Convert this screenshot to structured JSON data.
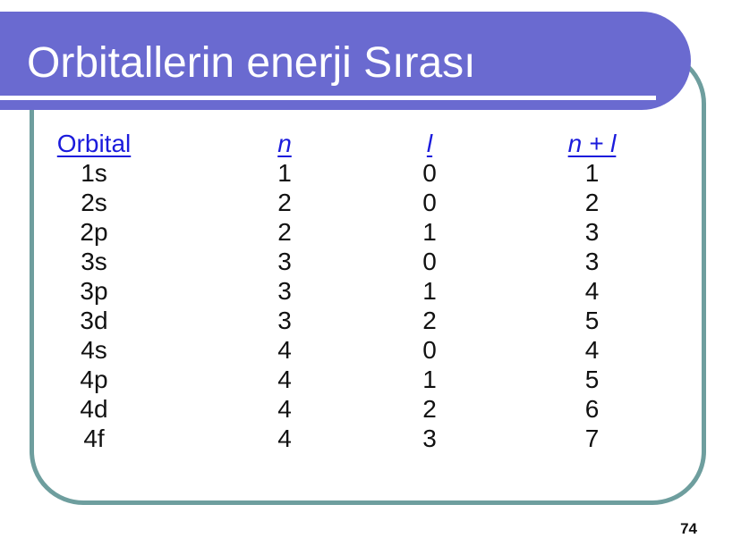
{
  "slide": {
    "title": "Orbitallerin enerji Sırası",
    "page_number": "74",
    "colors": {
      "band_purple": "#6a6ad0",
      "border_teal": "#6e9e9e",
      "header_blue": "#1b1bdc",
      "text_black": "#111111"
    }
  },
  "table": {
    "headers": [
      "Orbital",
      "n",
      "l",
      "n + l"
    ],
    "rows": [
      [
        "1s",
        "1",
        "0",
        "1"
      ],
      [
        "2s",
        "2",
        "0",
        "2"
      ],
      [
        "2p",
        "2",
        "1",
        "3"
      ],
      [
        "3s",
        "3",
        "0",
        "3"
      ],
      [
        "3p",
        "3",
        "1",
        "4"
      ],
      [
        "3d",
        "3",
        "2",
        "5"
      ],
      [
        "4s",
        "4",
        "0",
        "4"
      ],
      [
        "4p",
        "4",
        "1",
        "5"
      ],
      [
        "4d",
        "4",
        "2",
        "6"
      ],
      [
        "4f",
        "4",
        "3",
        "7"
      ]
    ]
  }
}
